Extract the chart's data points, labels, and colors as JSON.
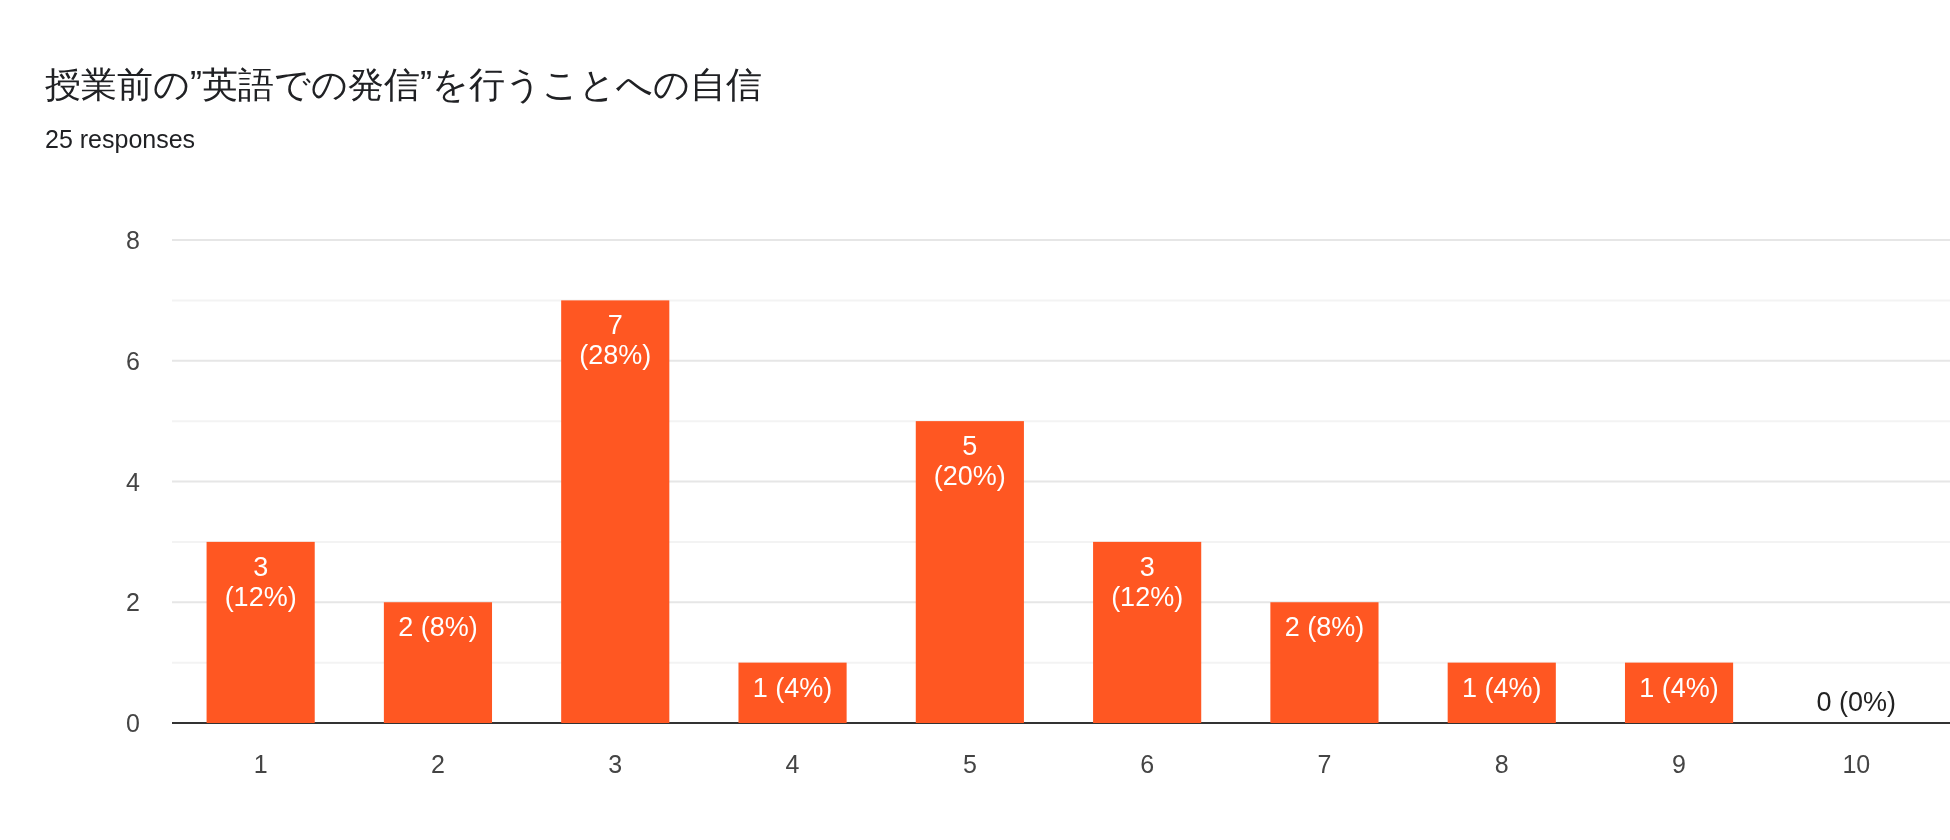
{
  "chart_data": {
    "type": "bar",
    "title": "授業前の”英語での発信”を行うことへの自信",
    "subtitle": "25 responses",
    "categories": [
      "1",
      "2",
      "3",
      "4",
      "5",
      "6",
      "7",
      "8",
      "9",
      "10"
    ],
    "values": [
      3,
      2,
      7,
      1,
      5,
      3,
      2,
      1,
      1,
      0
    ],
    "value_labels": [
      "3 (12%)",
      "2 (8%)",
      "7 (28%)",
      "1 (4%)",
      "5 (20%)",
      "3 (12%)",
      "2 (8%)",
      "1 (4%)",
      "1 (4%)",
      "0 (0%)"
    ],
    "color": "#ff5722",
    "ylim": [
      0,
      8
    ],
    "yticks": [
      0,
      {
        "value": 1,
        "label": null
      },
      2,
      {
        "value": 3,
        "label": null
      },
      4,
      {
        "value": 5,
        "label": null
      },
      6,
      {
        "value": 7,
        "label": null
      },
      8
    ],
    "grid": "y"
  }
}
